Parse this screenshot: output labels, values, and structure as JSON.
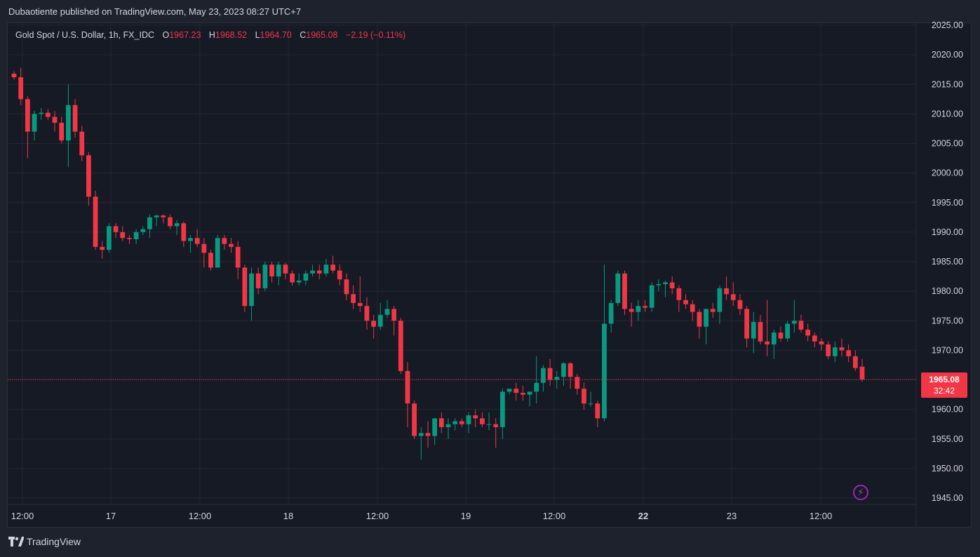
{
  "header": {
    "publisher_line": "Dubaotiente published on TradingView.com, May 23, 2023 08:27 UTC+7"
  },
  "legend": {
    "symbol": "Gold Spot / U.S. Dollar, 1h, FX_IDC",
    "open_label": "O",
    "open": "1967.23",
    "high_label": "H",
    "high": "1968.52",
    "low_label": "L",
    "low": "1964.70",
    "close_label": "C",
    "close": "1965.08",
    "change": "−2.19 (−0.11%)"
  },
  "price_tag": {
    "price": "1965.08",
    "countdown": "32:42"
  },
  "footer": {
    "brand": "TradingView"
  },
  "colors": {
    "up": "#089981",
    "down": "#f23645",
    "background": "#161a25",
    "grid": "#232733",
    "text": "#d1d4dc",
    "alert": "#9c27b0"
  },
  "icons": {
    "alert": "lightning-icon",
    "logo": "tradingview-logo-icon"
  },
  "chart_data": {
    "type": "candlestick",
    "title": "Gold Spot / U.S. Dollar, 1h, FX_IDC",
    "ylim": [
      1945,
      2025
    ],
    "y_ticks": [
      "2025.00",
      "2020.00",
      "2015.00",
      "2010.00",
      "2005.00",
      "2000.00",
      "1995.00",
      "1990.00",
      "1985.00",
      "1980.00",
      "1975.00",
      "1970.00",
      "1965.00",
      "1960.00",
      "1955.00",
      "1950.00",
      "1945.00"
    ],
    "x_ticks": [
      {
        "label": "12:00",
        "bold": false
      },
      {
        "label": "17",
        "bold": false
      },
      {
        "label": "12:00",
        "bold": false
      },
      {
        "label": "18",
        "bold": false
      },
      {
        "label": "12:00",
        "bold": false
      },
      {
        "label": "19",
        "bold": false
      },
      {
        "label": "12:00",
        "bold": false
      },
      {
        "label": "22",
        "bold": true
      },
      {
        "label": "23",
        "bold": false
      },
      {
        "label": "12:00",
        "bold": false
      }
    ],
    "last_price": 1965.08,
    "grid": true,
    "candles": [
      [
        2016.8,
        2017.2,
        2015.8,
        2016.2
      ],
      [
        2016.2,
        2017.8,
        2011.5,
        2012.5
      ],
      [
        2012.5,
        2013.0,
        2002.5,
        2007.0
      ],
      [
        2007.0,
        2010.5,
        2005.5,
        2010.0
      ],
      [
        2010.0,
        2011.0,
        2009.0,
        2010.2
      ],
      [
        2010.2,
        2010.8,
        2009.0,
        2009.5
      ],
      [
        2009.5,
        2010.5,
        2007.0,
        2008.5
      ],
      [
        2008.5,
        2009.5,
        2005.0,
        2005.5
      ],
      [
        2005.5,
        2015.0,
        2001.0,
        2011.5
      ],
      [
        2011.5,
        2012.5,
        2006.0,
        2007.0
      ],
      [
        2007.0,
        2008.0,
        2002.0,
        2003.0
      ],
      [
        2003.0,
        2003.5,
        1994.5,
        1996.0
      ],
      [
        1996.0,
        1997.0,
        1987.0,
        1987.5
      ],
      [
        1987.5,
        1988.5,
        1985.5,
        1987.0
      ],
      [
        1987.0,
        1991.5,
        1986.5,
        1991.0
      ],
      [
        1991.0,
        1991.5,
        1989.0,
        1990.0
      ],
      [
        1990.0,
        1991.0,
        1988.5,
        1989.0
      ],
      [
        1989.0,
        1989.5,
        1988.0,
        1988.8
      ],
      [
        1988.8,
        1990.5,
        1988.0,
        1990.0
      ],
      [
        1990.0,
        1991.0,
        1989.5,
        1990.5
      ],
      [
        1990.5,
        1993.0,
        1989.0,
        1992.5
      ],
      [
        1992.5,
        1993.0,
        1991.0,
        1992.8
      ],
      [
        1992.8,
        1993.0,
        1991.5,
        1992.5
      ],
      [
        1992.5,
        1993.0,
        1990.5,
        1991.0
      ],
      [
        1991.0,
        1992.0,
        1989.5,
        1991.5
      ],
      [
        1991.5,
        1991.8,
        1987.5,
        1988.5
      ],
      [
        1988.5,
        1989.5,
        1986.5,
        1989.0
      ],
      [
        1989.0,
        1990.5,
        1987.5,
        1988.0
      ],
      [
        1988.0,
        1989.0,
        1984.0,
        1986.5
      ],
      [
        1986.5,
        1987.0,
        1983.5,
        1984.0
      ],
      [
        1984.0,
        1989.5,
        1984.0,
        1989.0
      ],
      [
        1989.0,
        1989.5,
        1987.0,
        1988.0
      ],
      [
        1988.0,
        1989.0,
        1986.5,
        1987.5
      ],
      [
        1987.5,
        1988.5,
        1982.0,
        1984.0
      ],
      [
        1984.0,
        1984.5,
        1976.5,
        1977.5
      ],
      [
        1977.5,
        1984.0,
        1975.0,
        1983.0
      ],
      [
        1983.0,
        1984.0,
        1979.5,
        1980.5
      ],
      [
        1980.5,
        1985.0,
        1980.0,
        1984.5
      ],
      [
        1984.5,
        1985.0,
        1981.5,
        1982.5
      ],
      [
        1982.5,
        1985.0,
        1981.0,
        1984.5
      ],
      [
        1984.5,
        1984.8,
        1982.0,
        1983.0
      ],
      [
        1983.0,
        1983.5,
        1981.0,
        1981.5
      ],
      [
        1981.5,
        1983.0,
        1981.0,
        1981.8
      ],
      [
        1981.8,
        1983.5,
        1981.0,
        1983.0
      ],
      [
        1983.0,
        1984.5,
        1982.5,
        1983.5
      ],
      [
        1983.5,
        1984.5,
        1982.0,
        1983.0
      ],
      [
        1983.0,
        1985.5,
        1982.5,
        1984.5
      ],
      [
        1984.5,
        1986.0,
        1983.0,
        1983.5
      ],
      [
        1983.5,
        1984.5,
        1981.0,
        1982.0
      ],
      [
        1982.0,
        1983.0,
        1978.5,
        1979.5
      ],
      [
        1979.5,
        1981.0,
        1977.0,
        1978.0
      ],
      [
        1978.0,
        1982.5,
        1976.5,
        1977.5
      ],
      [
        1977.5,
        1979.0,
        1973.5,
        1975.0
      ],
      [
        1975.0,
        1976.0,
        1972.0,
        1974.0
      ],
      [
        1974.0,
        1978.0,
        1973.5,
        1976.0
      ],
      [
        1976.0,
        1978.5,
        1975.5,
        1977.0
      ],
      [
        1977.0,
        1977.5,
        1972.5,
        1975.0
      ],
      [
        1975.0,
        1975.5,
        1966.0,
        1966.5
      ],
      [
        1966.5,
        1968.0,
        1957.0,
        1961.0
      ],
      [
        1961.0,
        1961.5,
        1955.0,
        1955.5
      ],
      [
        1955.5,
        1957.0,
        1951.5,
        1956.0
      ],
      [
        1956.0,
        1958.0,
        1953.5,
        1955.5
      ],
      [
        1955.5,
        1958.5,
        1954.0,
        1958.5
      ],
      [
        1958.5,
        1959.5,
        1956.0,
        1957.0
      ],
      [
        1957.0,
        1958.5,
        1955.0,
        1957.5
      ],
      [
        1957.5,
        1958.5,
        1956.5,
        1958.0
      ],
      [
        1958.0,
        1958.5,
        1957.0,
        1957.5
      ],
      [
        1957.5,
        1959.5,
        1956.0,
        1959.0
      ],
      [
        1959.0,
        1960.0,
        1957.0,
        1958.5
      ],
      [
        1958.5,
        1959.5,
        1957.0,
        1957.5
      ],
      [
        1957.5,
        1959.5,
        1956.5,
        1957.5
      ],
      [
        1957.5,
        1958.5,
        1953.5,
        1957.0
      ],
      [
        1957.0,
        1963.5,
        1955.0,
        1963.0
      ],
      [
        1963.0,
        1963.5,
        1962.5,
        1963.5
      ],
      [
        1963.5,
        1964.5,
        1961.5,
        1962.8
      ],
      [
        1962.8,
        1964.0,
        1961.5,
        1962.5
      ],
      [
        1962.5,
        1963.0,
        1960.5,
        1963.0
      ],
      [
        1963.0,
        1969.0,
        1961.0,
        1964.5
      ],
      [
        1964.5,
        1967.5,
        1963.0,
        1967.0
      ],
      [
        1967.0,
        1968.5,
        1964.0,
        1965.0
      ],
      [
        1965.0,
        1966.5,
        1963.5,
        1965.5
      ],
      [
        1965.5,
        1968.0,
        1964.0,
        1967.8
      ],
      [
        1967.8,
        1968.0,
        1963.5,
        1965.5
      ],
      [
        1965.5,
        1966.0,
        1962.5,
        1963.5
      ],
      [
        1963.5,
        1964.5,
        1960.0,
        1961.0
      ],
      [
        1961.0,
        1963.0,
        1960.5,
        1961.0
      ],
      [
        1961.0,
        1961.5,
        1957.0,
        1958.5
      ],
      [
        1958.5,
        1984.5,
        1958.0,
        1974.5
      ],
      [
        1974.5,
        1978.5,
        1973.0,
        1978.0
      ],
      [
        1978.0,
        1983.5,
        1977.5,
        1983.0
      ],
      [
        1983.0,
        1983.5,
        1976.0,
        1977.0
      ],
      [
        1977.0,
        1978.0,
        1974.0,
        1976.5
      ],
      [
        1976.5,
        1978.5,
        1975.0,
        1977.5
      ],
      [
        1977.5,
        1978.5,
        1976.5,
        1977.2
      ],
      [
        1977.2,
        1981.5,
        1976.5,
        1981.0
      ],
      [
        1981.0,
        1982.0,
        1980.0,
        1981.2
      ],
      [
        1981.2,
        1981.8,
        1979.0,
        1981.5
      ],
      [
        1981.5,
        1982.5,
        1979.5,
        1980.5
      ],
      [
        1980.5,
        1981.0,
        1976.5,
        1978.5
      ],
      [
        1978.5,
        1979.5,
        1977.0,
        1977.8
      ],
      [
        1977.8,
        1978.5,
        1975.0,
        1976.5
      ],
      [
        1976.5,
        1977.0,
        1972.0,
        1974.0
      ],
      [
        1974.0,
        1977.0,
        1971.0,
        1977.0
      ],
      [
        1977.0,
        1978.0,
        1975.5,
        1976.5
      ],
      [
        1976.5,
        1981.0,
        1974.5,
        1980.5
      ],
      [
        1980.5,
        1982.5,
        1978.5,
        1979.5
      ],
      [
        1979.5,
        1981.5,
        1977.5,
        1978.5
      ],
      [
        1978.5,
        1979.5,
        1976.0,
        1977.0
      ],
      [
        1977.0,
        1977.5,
        1970.5,
        1972.0
      ],
      [
        1972.0,
        1976.5,
        1969.5,
        1974.8
      ],
      [
        1974.8,
        1976.0,
        1971.0,
        1971.5
      ],
      [
        1971.5,
        1978.5,
        1969.0,
        1971.0
      ],
      [
        1971.0,
        1973.5,
        1968.5,
        1973.0
      ],
      [
        1973.0,
        1974.0,
        1971.5,
        1972.0
      ],
      [
        1972.0,
        1975.0,
        1971.5,
        1974.5
      ],
      [
        1974.5,
        1978.5,
        1973.0,
        1975.0
      ],
      [
        1975.0,
        1976.0,
        1973.0,
        1973.5
      ],
      [
        1973.5,
        1974.5,
        1971.5,
        1972.5
      ],
      [
        1972.5,
        1973.0,
        1970.5,
        1971.5
      ],
      [
        1971.5,
        1972.0,
        1970.0,
        1971.0
      ],
      [
        1971.0,
        1971.5,
        1968.5,
        1969.0
      ],
      [
        1969.0,
        1971.5,
        1968.0,
        1970.5
      ],
      [
        1970.5,
        1972.0,
        1969.0,
        1970.0
      ],
      [
        1970.0,
        1971.0,
        1968.0,
        1969.0
      ],
      [
        1969.0,
        1970.0,
        1966.5,
        1967.0
      ],
      [
        1967.23,
        1968.52,
        1964.7,
        1965.08
      ]
    ]
  }
}
